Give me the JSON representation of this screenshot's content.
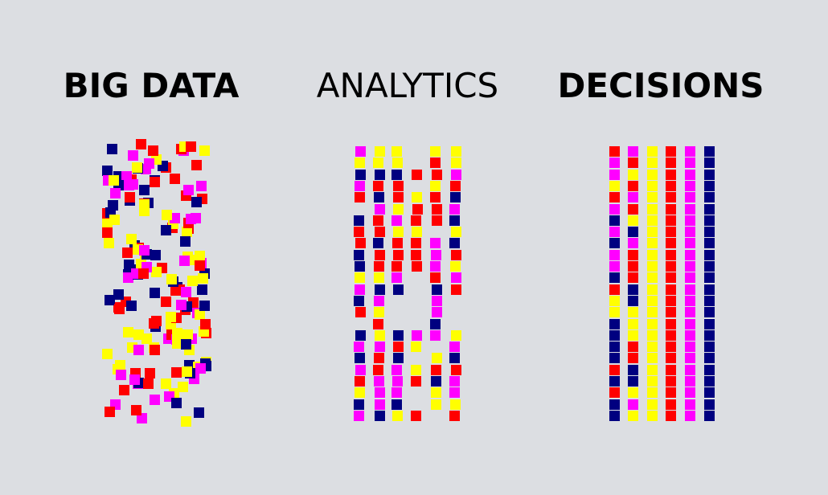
{
  "headings": {
    "big_data": "BIG DATA",
    "analytics": "ANALYTICS",
    "decisions": "DECISIONS"
  },
  "colors": {
    "background": "#dcdee2",
    "magenta": "#ff00ff",
    "yellow": "#ffff00",
    "red": "#ff0000",
    "navy": "#000080"
  },
  "decisions_columns": [
    "mixed",
    "mixed",
    "yellow",
    "red",
    "magenta",
    "navy"
  ]
}
